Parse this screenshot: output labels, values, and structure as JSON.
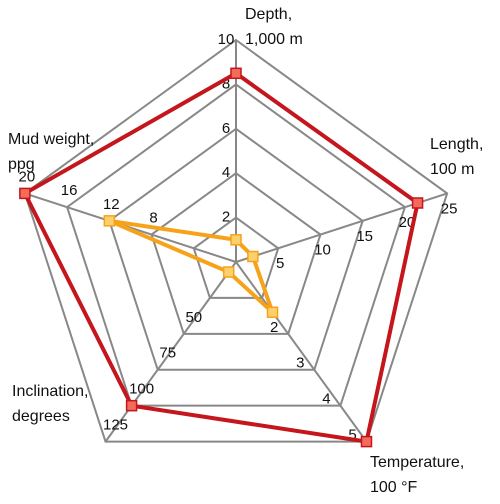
{
  "chart_data": {
    "type": "radar",
    "axes": [
      {
        "label": [
          "Depth,",
          "1,000 m"
        ],
        "lim": [
          0,
          10
        ],
        "ticks": [
          2,
          4,
          6,
          8,
          10
        ]
      },
      {
        "label": [
          "Length,",
          "100 m"
        ],
        "lim": [
          0,
          25
        ],
        "ticks": [
          5,
          10,
          15,
          20,
          25
        ]
      },
      {
        "label": [
          "Temperature,",
          "100 °F"
        ],
        "lim": [
          0,
          5
        ],
        "ticks": [
          2,
          3,
          4,
          5
        ]
      },
      {
        "label": [
          "Inclination,",
          "degrees"
        ],
        "lim": [
          0,
          125
        ],
        "ticks": [
          50,
          75,
          100,
          125
        ]
      },
      {
        "label": [
          "Mud weight,",
          "ppg"
        ],
        "lim": [
          0,
          20
        ],
        "ticks": [
          8,
          12,
          16,
          20
        ]
      }
    ],
    "series": [
      {
        "color": "#c4161c",
        "marker_fill": "#f26b5b",
        "values": [
          8.5,
          21.5,
          5,
          100,
          20
        ]
      },
      {
        "color": "#f7a21b",
        "marker_fill": "#fcd16b",
        "values": [
          1,
          2,
          1.4,
          7,
          12
        ]
      }
    ]
  }
}
